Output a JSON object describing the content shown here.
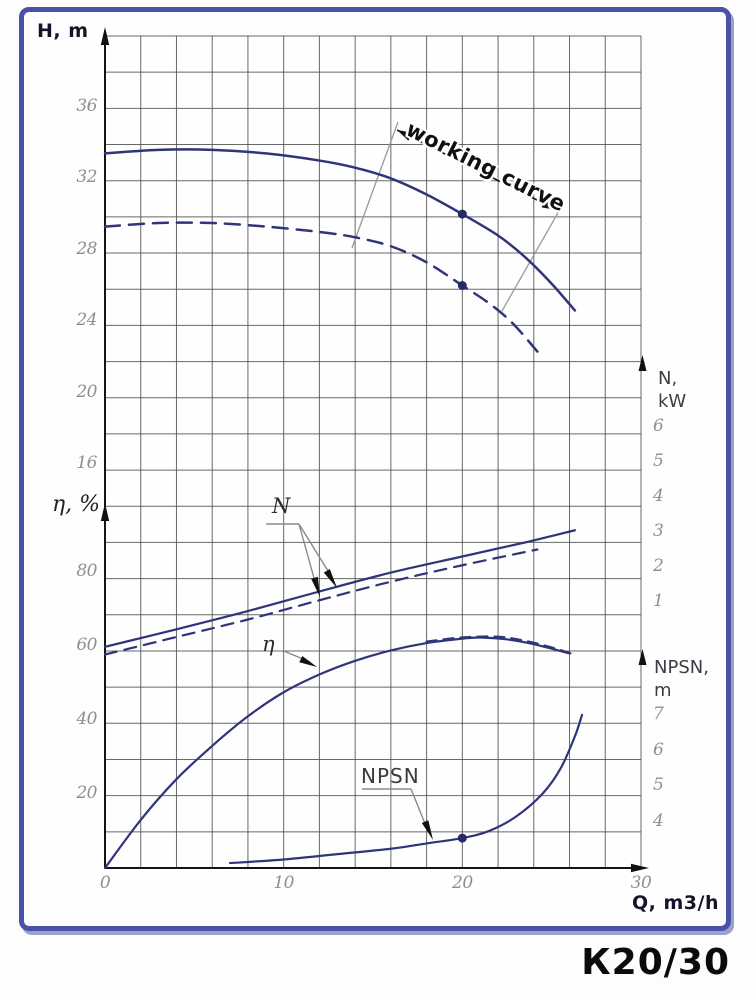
{
  "pump_model": "К20/30",
  "chart_data": {
    "type": "line",
    "title": "К20/30",
    "x_axis": {
      "label": "Q, m3/h",
      "ticks": [
        0,
        10,
        20,
        30
      ],
      "range": [
        0,
        30
      ],
      "grid_step": 2
    },
    "y_axes": {
      "head": {
        "label": "H, m",
        "ticks": [
          36,
          32,
          28,
          24,
          20,
          16
        ],
        "grid_step": 2
      },
      "efficiency": {
        "label": "η, %",
        "ticks": [
          80,
          60,
          40,
          20
        ],
        "grid_step": 10
      },
      "power": {
        "label_line1": "N,",
        "label_line2": "kW",
        "ticks": [
          6,
          5,
          4,
          3,
          2,
          1
        ]
      },
      "npsh": {
        "label_line1": "NPSN,",
        "label_line2": "m",
        "ticks": [
          7,
          6,
          5,
          4
        ]
      }
    },
    "series": [
      {
        "name": "head-full-impeller",
        "axis": "head",
        "style": "solid",
        "points": [
          [
            0,
            33.4
          ],
          [
            3,
            33.6
          ],
          [
            6,
            33.6
          ],
          [
            9,
            33.4
          ],
          [
            12,
            33.0
          ],
          [
            14,
            32.6
          ],
          [
            16,
            32.0
          ],
          [
            18,
            31.1
          ],
          [
            20,
            30.0
          ],
          [
            22,
            28.8
          ],
          [
            23.5,
            27.6
          ],
          [
            25,
            26.1
          ],
          [
            26.3,
            24.6
          ]
        ]
      },
      {
        "name": "head-trimmed-impeller",
        "axis": "head",
        "style": "dashed",
        "points": [
          [
            0,
            29.3
          ],
          [
            3,
            29.5
          ],
          [
            6,
            29.5
          ],
          [
            9,
            29.3
          ],
          [
            12,
            29.0
          ],
          [
            14,
            28.7
          ],
          [
            16,
            28.2
          ],
          [
            18,
            27.3
          ],
          [
            20,
            26.0
          ],
          [
            21.5,
            25.0
          ],
          [
            22.8,
            23.9
          ],
          [
            24.2,
            22.3
          ]
        ]
      },
      {
        "name": "power-full-impeller",
        "axis": "power",
        "style": "solid",
        "points": [
          [
            0,
            -0.28
          ],
          [
            4,
            0.22
          ],
          [
            8,
            0.74
          ],
          [
            12,
            1.3
          ],
          [
            16,
            1.84
          ],
          [
            20,
            2.3
          ],
          [
            23.5,
            2.7
          ],
          [
            26.3,
            3.05
          ]
        ]
      },
      {
        "name": "power-trimmed-impeller",
        "axis": "power",
        "style": "dashed",
        "points": [
          [
            0,
            -0.5
          ],
          [
            4,
            0.0
          ],
          [
            8,
            0.5
          ],
          [
            12,
            1.05
          ],
          [
            16,
            1.58
          ],
          [
            20,
            2.05
          ],
          [
            24.2,
            2.5
          ]
        ]
      },
      {
        "name": "efficiency",
        "axis": "efficiency",
        "style": "solid",
        "points": [
          [
            0,
            0
          ],
          [
            2,
            13
          ],
          [
            4,
            24
          ],
          [
            6,
            33
          ],
          [
            8,
            41
          ],
          [
            10,
            47.5
          ],
          [
            12,
            52.3
          ],
          [
            14,
            56
          ],
          [
            16,
            58.8
          ],
          [
            18,
            60.8
          ],
          [
            20,
            62
          ],
          [
            21,
            62.3
          ],
          [
            22.5,
            61.8
          ],
          [
            24,
            60.5
          ],
          [
            26,
            58
          ]
        ]
      },
      {
        "name": "efficiency-trimmed",
        "axis": "efficiency",
        "style": "dashed",
        "points": [
          [
            18,
            61.2
          ],
          [
            20,
            62.3
          ],
          [
            22,
            62.5
          ],
          [
            23.5,
            61.4
          ],
          [
            25,
            59.6
          ],
          [
            26.2,
            57.8
          ]
        ]
      },
      {
        "name": "npsh",
        "axis": "npsh",
        "style": "solid",
        "points": [
          [
            7,
            2.85
          ],
          [
            10,
            2.95
          ],
          [
            13,
            3.1
          ],
          [
            16,
            3.25
          ],
          [
            18,
            3.4
          ],
          [
            20,
            3.55
          ],
          [
            21.5,
            3.75
          ],
          [
            23,
            4.15
          ],
          [
            24.5,
            4.8
          ],
          [
            25.5,
            5.5
          ],
          [
            26.3,
            6.4
          ],
          [
            26.7,
            7.0
          ]
        ]
      }
    ],
    "working_points": [
      {
        "series": "head-full-impeller",
        "q": 20,
        "value": 30
      },
      {
        "series": "head-trimmed-impeller",
        "q": 20,
        "value": 26
      },
      {
        "series": "npsh",
        "q": 20,
        "value": 3.55
      }
    ],
    "annotations": {
      "working_curve": "working curve",
      "power": "N",
      "efficiency": "η",
      "npsh": "NPSN"
    },
    "colors": {
      "curve": "#30357a",
      "marker": "#262a66",
      "grid": "#4f4f4f",
      "frame": "#4a52a8"
    },
    "legend_position": "none",
    "grid": "on"
  }
}
